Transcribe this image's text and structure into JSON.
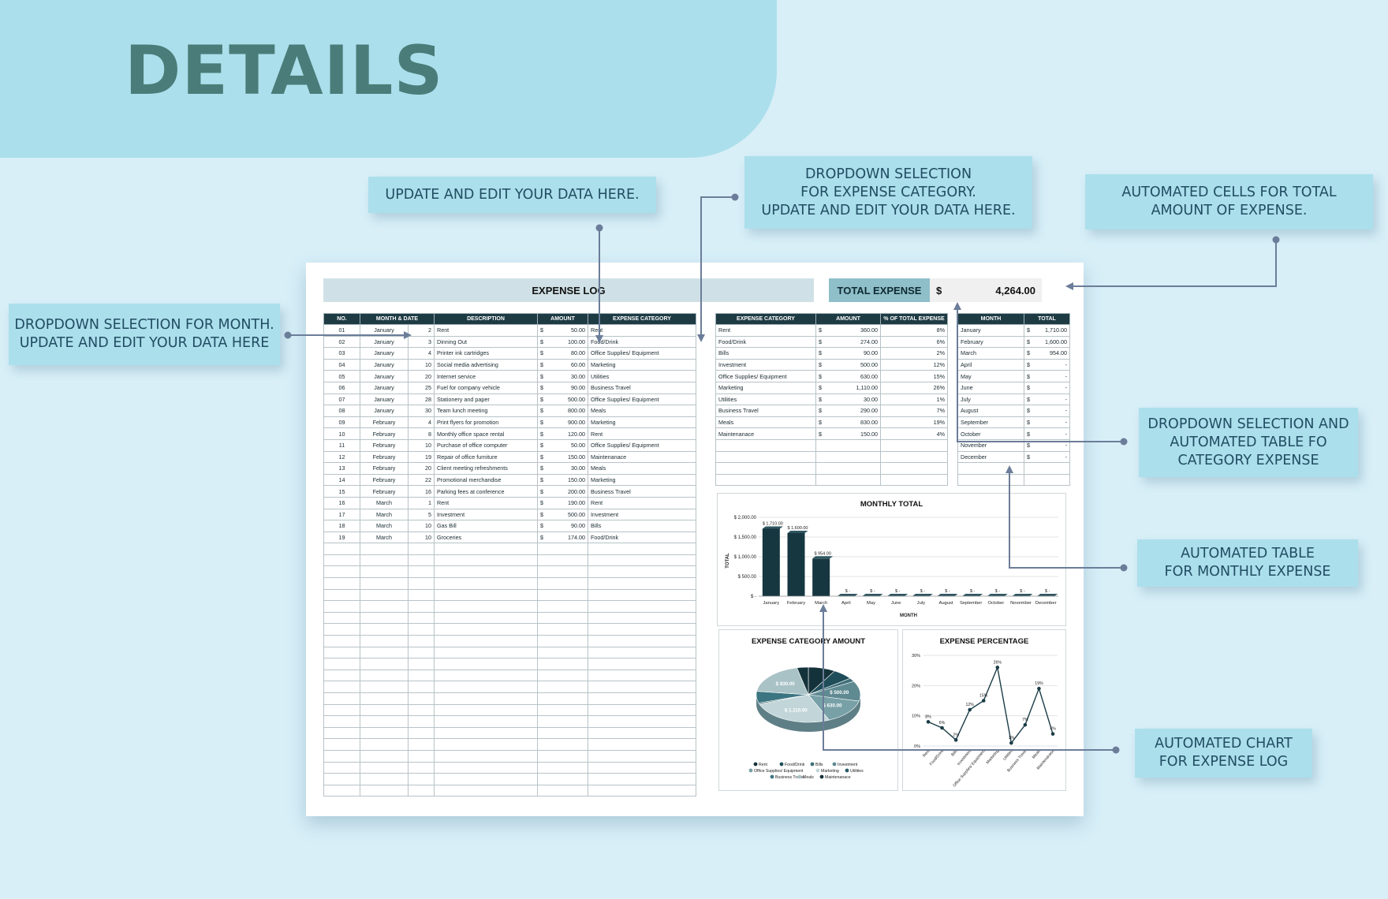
{
  "page_title": "DETAILS",
  "callouts": {
    "update_data": "UPDATE AND EDIT YOUR DATA HERE.",
    "dropdown_category": "DROPDOWN SELECTION\nFOR EXPENSE CATEGORY.\nUPDATE AND EDIT YOUR DATA HERE.",
    "automated_total": "AUTOMATED CELLS FOR TOTAL\nAMOUNT OF EXPENSE.",
    "dropdown_month": "DROPDOWN SELECTION FOR MONTH.\nUPDATE AND EDIT YOUR DATA HERE",
    "dropdown_category_table": "DROPDOWN SELECTION AND\nAUTOMATED TABLE FO\nCATEGORY EXPENSE",
    "automated_monthly": "AUTOMATED TABLE\nFOR MONTHLY EXPENSE",
    "automated_chart": "AUTOMATED CHART\nFOR EXPENSE LOG"
  },
  "expense_log": {
    "title": "EXPENSE LOG",
    "headers": [
      "NO.",
      "MONTH & DATE",
      "DESCRIPTION",
      "AMOUNT",
      "EXPENSE CATEGORY"
    ],
    "currency": "$",
    "rows": [
      {
        "no": "01",
        "month": "January",
        "day": "2",
        "desc": "Rent",
        "amount": "50.00",
        "cat": "Rent"
      },
      {
        "no": "02",
        "month": "January",
        "day": "3",
        "desc": "Dinning Out",
        "amount": "100.00",
        "cat": "Food/Drink"
      },
      {
        "no": "03",
        "month": "January",
        "day": "4",
        "desc": "Printer ink cartridges",
        "amount": "80.00",
        "cat": "Office Supplies/ Equipment"
      },
      {
        "no": "04",
        "month": "January",
        "day": "10",
        "desc": "Social media advertising",
        "amount": "60.00",
        "cat": "Marketing"
      },
      {
        "no": "05",
        "month": "January",
        "day": "20",
        "desc": "Internet service",
        "amount": "30.00",
        "cat": "Utilities"
      },
      {
        "no": "06",
        "month": "January",
        "day": "25",
        "desc": "Fuel for company vehicle",
        "amount": "90.00",
        "cat": "Business Travel"
      },
      {
        "no": "07",
        "month": "January",
        "day": "28",
        "desc": "Stationery and paper",
        "amount": "500.00",
        "cat": "Office Supplies/ Equipment"
      },
      {
        "no": "08",
        "month": "January",
        "day": "30",
        "desc": "Team lunch meeting",
        "amount": "800.00",
        "cat": "Meals"
      },
      {
        "no": "09",
        "month": "February",
        "day": "4",
        "desc": "Print flyers for promotion",
        "amount": "900.00",
        "cat": "Marketing"
      },
      {
        "no": "10",
        "month": "February",
        "day": "8",
        "desc": "Monthly office space rental",
        "amount": "120.00",
        "cat": "Rent"
      },
      {
        "no": "11",
        "month": "February",
        "day": "10",
        "desc": "Purchase of office computer",
        "amount": "50.00",
        "cat": "Office Supplies/ Equipment"
      },
      {
        "no": "12",
        "month": "February",
        "day": "19",
        "desc": "Repair of office furniture",
        "amount": "150.00",
        "cat": "Maintenanace"
      },
      {
        "no": "13",
        "month": "February",
        "day": "20",
        "desc": "Client meeting refreshments",
        "amount": "30.00",
        "cat": "Meals"
      },
      {
        "no": "14",
        "month": "February",
        "day": "22",
        "desc": "Promotional merchandise",
        "amount": "150.00",
        "cat": "Marketing"
      },
      {
        "no": "15",
        "month": "February",
        "day": "16",
        "desc": "Parking fees at conference",
        "amount": "200.00",
        "cat": "Business Travel"
      },
      {
        "no": "16",
        "month": "March",
        "day": "1",
        "desc": "Rent",
        "amount": "190.00",
        "cat": "Rent"
      },
      {
        "no": "17",
        "month": "March",
        "day": "5",
        "desc": "Investment",
        "amount": "500.00",
        "cat": "Investment"
      },
      {
        "no": "18",
        "month": "March",
        "day": "10",
        "desc": "Gas Bill",
        "amount": "90.00",
        "cat": "Bills"
      },
      {
        "no": "19",
        "month": "March",
        "day": "10",
        "desc": "Groceries",
        "amount": "174.00",
        "cat": "Food/Drink"
      }
    ]
  },
  "total_expense": {
    "label": "TOTAL EXPENSE",
    "currency": "$",
    "value": "4,264.00"
  },
  "category_table": {
    "headers": [
      "EXPENSE CATEGORY",
      "AMOUNT",
      "% OF TOTAL EXPENSE"
    ],
    "currency": "$",
    "rows": [
      {
        "cat": "Rent",
        "amount": "360.00",
        "pct": "8%"
      },
      {
        "cat": "Food/Drink",
        "amount": "274.00",
        "pct": "6%"
      },
      {
        "cat": "Bills",
        "amount": "90.00",
        "pct": "2%"
      },
      {
        "cat": "Investment",
        "amount": "500.00",
        "pct": "12%"
      },
      {
        "cat": "Office Supplies/ Equipment",
        "amount": "630.00",
        "pct": "15%"
      },
      {
        "cat": "Marketing",
        "amount": "1,110.00",
        "pct": "26%"
      },
      {
        "cat": "Utilities",
        "amount": "30.00",
        "pct": "1%"
      },
      {
        "cat": "Business Travel",
        "amount": "290.00",
        "pct": "7%"
      },
      {
        "cat": "Meals",
        "amount": "830.00",
        "pct": "19%"
      },
      {
        "cat": "Maintenanace",
        "amount": "150.00",
        "pct": "4%"
      }
    ]
  },
  "monthly_table": {
    "headers": [
      "MONTH",
      "TOTAL"
    ],
    "currency": "$",
    "rows": [
      {
        "month": "January",
        "total": "1,710.00"
      },
      {
        "month": "February",
        "total": "1,600.00"
      },
      {
        "month": "March",
        "total": "954.00"
      },
      {
        "month": "April",
        "total": "-"
      },
      {
        "month": "May",
        "total": "-"
      },
      {
        "month": "June",
        "total": "-"
      },
      {
        "month": "July",
        "total": "-"
      },
      {
        "month": "August",
        "total": "-"
      },
      {
        "month": "September",
        "total": "-"
      },
      {
        "month": "October",
        "total": "-"
      },
      {
        "month": "November",
        "total": "-"
      },
      {
        "month": "December",
        "total": "-"
      }
    ]
  },
  "colors": {
    "header_dark": "#1e3b44",
    "bar": "#173740",
    "callout_bg": "#abdfeb",
    "callout_text": "#214d63",
    "arrow": "#6b7d99",
    "page_bg": "#d8eff8",
    "pie": [
      "#14323a",
      "#1f4d59",
      "#3f6f79",
      "#5f8a92",
      "#78a0a7",
      "#c2d6d9",
      "#2b5d68",
      "#3c7582",
      "#a9c2c6"
    ]
  },
  "chart_data": [
    {
      "type": "bar",
      "title": "MONTHLY TOTAL",
      "xlabel": "MONTH",
      "ylabel": "TOTAL",
      "categories": [
        "January",
        "February",
        "March",
        "April",
        "May",
        "June",
        "July",
        "August",
        "September",
        "October",
        "November",
        "December"
      ],
      "values": [
        1710,
        1600,
        954,
        0,
        0,
        0,
        0,
        0,
        0,
        0,
        0,
        0
      ],
      "data_labels": [
        "$ 1,710.00",
        "$ 1,600.00",
        "$ 954.00",
        "$ -",
        "$ -",
        "$ -",
        "$ -",
        "$ -",
        "$ -",
        "$ -",
        "$ -",
        "$ -"
      ],
      "yticks": [
        "$ -",
        "$ 500.00",
        "$ 1,000.00",
        "$ 1,500.00",
        "$ 2,000.00"
      ],
      "ylim": [
        0,
        2000
      ],
      "grid": true
    },
    {
      "type": "pie",
      "title": "EXPENSE CATEGORY AMOUNT",
      "categories": [
        "Rent",
        "Food/Drink",
        "Bills",
        "Investment",
        "Office Supplies/ Equipment",
        "Marketing",
        "Utilities",
        "Business Travel",
        "Meals",
        "Maintenanace"
      ],
      "values": [
        360,
        274,
        90,
        500,
        630,
        1110,
        30,
        290,
        830,
        150
      ],
      "data_labels": {
        "Meals": "$ 830.00",
        "Investment": "$ 500.00",
        "Office Supplies/ Equipment": "$ 630.00",
        "Marketing": "$ 1,110.00"
      },
      "legend": "bottom"
    },
    {
      "type": "line",
      "title": "EXPENSE PERCENTAGE",
      "categories": [
        "Rent",
        "Food/Drink",
        "Bills",
        "Investment",
        "Office Supplies/ Equipment",
        "Marketing",
        "Utilities",
        "Business Travel",
        "Meals",
        "Maintenanace"
      ],
      "values": [
        8,
        6,
        2,
        12,
        15,
        26,
        1,
        7,
        19,
        4
      ],
      "data_labels": [
        "8%",
        "6%",
        "2%",
        "12%",
        "15%",
        "26%",
        "1%",
        "7%",
        "19%",
        "4%"
      ],
      "yticks": [
        "0%",
        "10%",
        "20%",
        "30%"
      ],
      "ylim": [
        0,
        30
      ],
      "grid": true
    }
  ]
}
